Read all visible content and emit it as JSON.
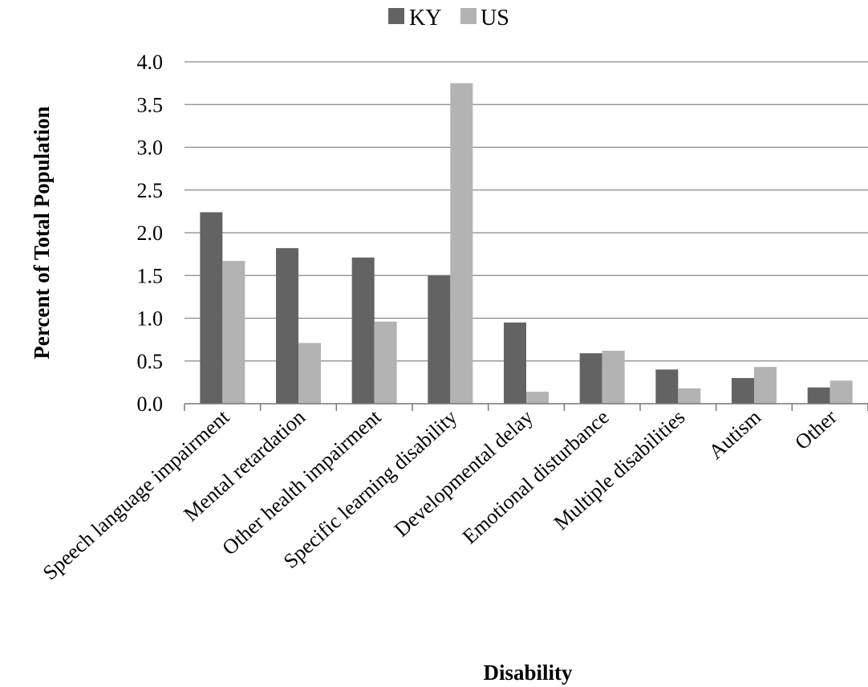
{
  "chart_data": {
    "type": "bar",
    "categories": [
      "Speech language impairment",
      "Mental retardation",
      "Other health impairment",
      "Specific learning disability",
      "Developmental delay",
      "Emotional disturbance",
      "Multiple disabilities",
      "Autism",
      "Other"
    ],
    "series": [
      {
        "name": "KY",
        "color": "#636363",
        "values": [
          2.24,
          1.82,
          1.71,
          1.5,
          0.95,
          0.59,
          0.4,
          0.3,
          0.19
        ]
      },
      {
        "name": "US",
        "color": "#b3b3b3",
        "values": [
          1.67,
          0.71,
          0.96,
          3.75,
          0.14,
          0.62,
          0.18,
          0.43,
          0.27
        ]
      }
    ],
    "xlabel": "Disability",
    "ylabel": "Percent of Total Population",
    "ylim": [
      0,
      4.0
    ],
    "yticks": [
      "0.0",
      "0.5",
      "1.0",
      "1.5",
      "2.0",
      "2.5",
      "3.0",
      "3.5",
      "4.0"
    ],
    "grid": true,
    "legend": "top-center"
  }
}
